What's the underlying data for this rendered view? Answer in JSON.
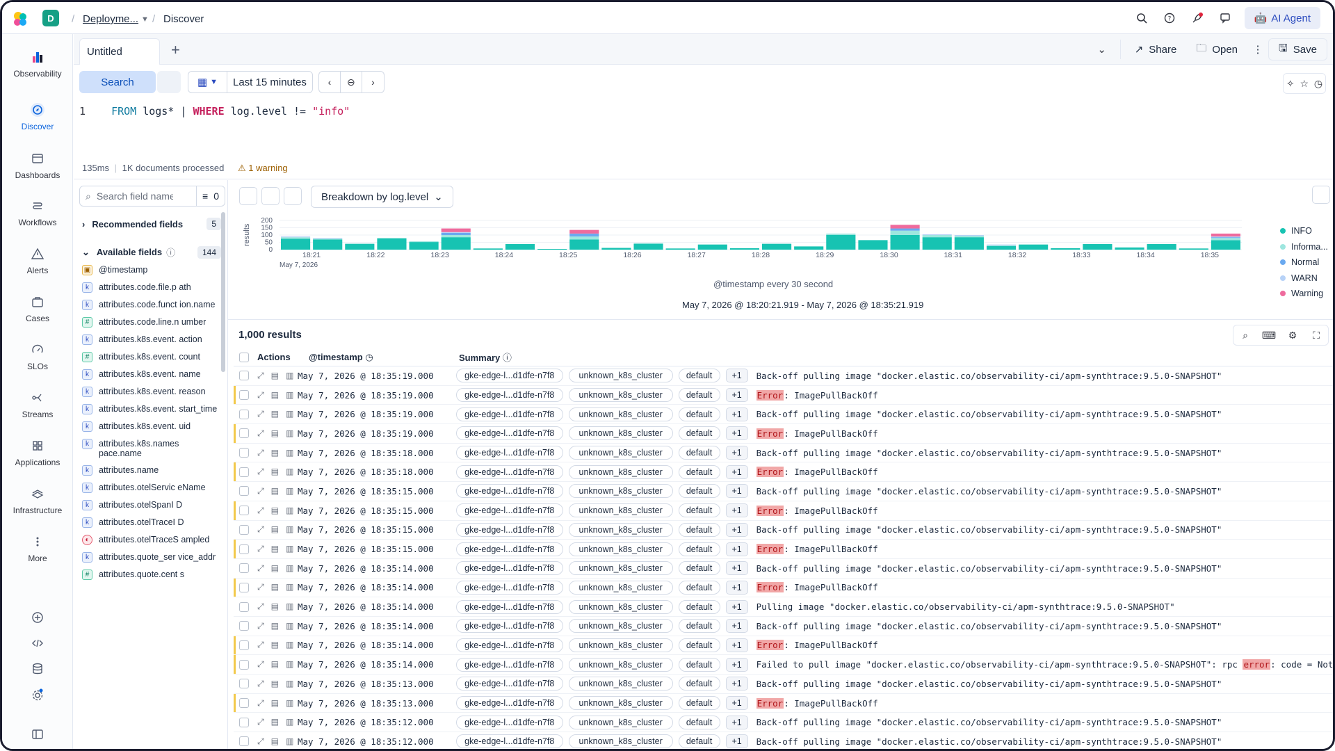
{
  "header": {
    "space_initial": "D",
    "breadcrumb_deployment": "Deployme...",
    "breadcrumb_page": "Discover",
    "ai_agent_label": "AI Agent"
  },
  "nav": {
    "items": [
      {
        "label": "Observability",
        "icon": "observability-icon"
      },
      {
        "label": "Discover",
        "icon": "discover-icon"
      },
      {
        "label": "Dashboards",
        "icon": "dashboards-icon"
      },
      {
        "label": "Workflows",
        "icon": "workflows-icon"
      },
      {
        "label": "Alerts",
        "icon": "alerts-icon"
      },
      {
        "label": "Cases",
        "icon": "cases-icon"
      },
      {
        "label": "SLOs",
        "icon": "slos-icon"
      },
      {
        "label": "Streams",
        "icon": "streams-icon"
      },
      {
        "label": "Applications",
        "icon": "applications-icon"
      },
      {
        "label": "Infrastructure",
        "icon": "infrastructure-icon"
      },
      {
        "label": "More",
        "icon": "more-icon"
      }
    ]
  },
  "tabs": {
    "active_tab": "Untitled",
    "share": "Share",
    "open": "Open",
    "save": "Save"
  },
  "query": {
    "search_label": "Search",
    "time_range": "Last 15 minutes",
    "line_number": "1",
    "from_kw": "FROM",
    "index": "logs*",
    "pipe": "|",
    "where_kw": "WHERE",
    "condition": "log.level !=",
    "value": "\"info\"",
    "duration": "135ms",
    "docs_processed": "1K documents processed",
    "warning": "1 warning"
  },
  "sidebar": {
    "search_placeholder": "Search field name",
    "filter_count": "0",
    "recommended_label": "Recommended fields",
    "recommended_count": "5",
    "available_label": "Available fields",
    "available_count": "144",
    "fields": [
      {
        "name": "@timestamp",
        "type": "date"
      },
      {
        "name": "attributes.code.file.p ath",
        "type": "keyword"
      },
      {
        "name": "attributes.code.funct ion.name",
        "type": "keyword"
      },
      {
        "name": "attributes.code.line.n umber",
        "type": "number"
      },
      {
        "name": "attributes.k8s.event. action",
        "type": "keyword"
      },
      {
        "name": "attributes.k8s.event. count",
        "type": "number"
      },
      {
        "name": "attributes.k8s.event. name",
        "type": "keyword"
      },
      {
        "name": "attributes.k8s.event. reason",
        "type": "keyword"
      },
      {
        "name": "attributes.k8s.event. start_time",
        "type": "keyword"
      },
      {
        "name": "attributes.k8s.event. uid",
        "type": "keyword"
      },
      {
        "name": "attributes.k8s.names pace.name",
        "type": "keyword"
      },
      {
        "name": "attributes.name",
        "type": "keyword"
      },
      {
        "name": "attributes.otelServic eName",
        "type": "keyword"
      },
      {
        "name": "attributes.otelSpanI D",
        "type": "keyword"
      },
      {
        "name": "attributes.otelTraceI D",
        "type": "keyword"
      },
      {
        "name": "attributes.otelTraceS ampled",
        "type": "boolean"
      },
      {
        "name": "attributes.quote_ser vice_addr",
        "type": "keyword"
      },
      {
        "name": "attributes.quote.cent s",
        "type": "number"
      }
    ]
  },
  "chart": {
    "breakdown_label": "Breakdown by log.level",
    "y_axis_label": "results",
    "x_caption": "@timestamp every 30 second",
    "date_label": "May 7, 2026",
    "range_label": "May 7, 2026 @ 18:20:21.919 - May 7, 2026 @ 18:35:21.919"
  },
  "chart_data": {
    "type": "bar",
    "stacked": true,
    "ylim": [
      0,
      200
    ],
    "yticks": [
      "200",
      "150",
      "100",
      "50",
      "0"
    ],
    "xtick_labels": [
      "18:21",
      "18:22",
      "18:23",
      "18:24",
      "18:25",
      "18:26",
      "18:27",
      "18:28",
      "18:29",
      "18:30",
      "18:31",
      "18:32",
      "18:33",
      "18:34",
      "18:35"
    ],
    "bars": [
      {
        "INFO": 75,
        "Informational": 10,
        "Normal": 0,
        "WARN": 5,
        "Warning": 0
      },
      {
        "INFO": 70,
        "Informational": 5,
        "Normal": 0,
        "WARN": 5,
        "Warning": 0
      },
      {
        "INFO": 40,
        "Informational": 0,
        "Normal": 0,
        "WARN": 0,
        "Warning": 0
      },
      {
        "INFO": 78,
        "Informational": 0,
        "Normal": 0,
        "WARN": 0,
        "Warning": 0
      },
      {
        "INFO": 52,
        "Informational": 5,
        "Normal": 0,
        "WARN": 0,
        "Warning": 0
      },
      {
        "INFO": 85,
        "Informational": 15,
        "Normal": 15,
        "WARN": 5,
        "Warning": 25
      },
      {
        "INFO": 8,
        "Informational": 0,
        "Normal": 0,
        "WARN": 0,
        "Warning": 0
      },
      {
        "INFO": 38,
        "Informational": 0,
        "Normal": 0,
        "WARN": 0,
        "Warning": 0
      },
      {
        "INFO": 5,
        "Informational": 0,
        "Normal": 0,
        "WARN": 0,
        "Warning": 0
      },
      {
        "INFO": 70,
        "Informational": 20,
        "Normal": 20,
        "WARN": 0,
        "Warning": 25
      },
      {
        "INFO": 12,
        "Informational": 0,
        "Normal": 0,
        "WARN": 0,
        "Warning": 0
      },
      {
        "INFO": 40,
        "Informational": 5,
        "Normal": 0,
        "WARN": 0,
        "Warning": 0
      },
      {
        "INFO": 8,
        "Informational": 0,
        "Normal": 0,
        "WARN": 0,
        "Warning": 0
      },
      {
        "INFO": 35,
        "Informational": 0,
        "Normal": 0,
        "WARN": 0,
        "Warning": 0
      },
      {
        "INFO": 10,
        "Informational": 0,
        "Normal": 0,
        "WARN": 0,
        "Warning": 0
      },
      {
        "INFO": 40,
        "Informational": 0,
        "Normal": 0,
        "WARN": 0,
        "Warning": 0
      },
      {
        "INFO": 22,
        "Informational": 0,
        "Normal": 0,
        "WARN": 0,
        "Warning": 0
      },
      {
        "INFO": 100,
        "Informational": 10,
        "Normal": 0,
        "WARN": 0,
        "Warning": 0
      },
      {
        "INFO": 65,
        "Informational": 0,
        "Normal": 0,
        "WARN": 0,
        "Warning": 0
      },
      {
        "INFO": 100,
        "Informational": 30,
        "Normal": 15,
        "WARN": 0,
        "Warning": 25
      },
      {
        "INFO": 85,
        "Informational": 15,
        "Normal": 0,
        "WARN": 5,
        "Warning": 0
      },
      {
        "INFO": 85,
        "Informational": 10,
        "Normal": 0,
        "WARN": 5,
        "Warning": 0
      },
      {
        "INFO": 25,
        "Informational": 5,
        "Normal": 0,
        "WARN": 5,
        "Warning": 0
      },
      {
        "INFO": 35,
        "Informational": 0,
        "Normal": 0,
        "WARN": 0,
        "Warning": 0
      },
      {
        "INFO": 10,
        "Informational": 0,
        "Normal": 0,
        "WARN": 0,
        "Warning": 0
      },
      {
        "INFO": 38,
        "Informational": 0,
        "Normal": 0,
        "WARN": 0,
        "Warning": 0
      },
      {
        "INFO": 15,
        "Informational": 0,
        "Normal": 0,
        "WARN": 0,
        "Warning": 0
      },
      {
        "INFO": 38,
        "Informational": 0,
        "Normal": 0,
        "WARN": 0,
        "Warning": 0
      },
      {
        "INFO": 8,
        "Informational": 0,
        "Normal": 0,
        "WARN": 0,
        "Warning": 0
      },
      {
        "INFO": 65,
        "Informational": 15,
        "Normal": 5,
        "WARN": 5,
        "Warning": 20
      }
    ],
    "series": [
      {
        "name": "INFO",
        "color": "#17c3b2"
      },
      {
        "name": "Informa...",
        "color": "#9ee6df"
      },
      {
        "name": "Normal",
        "color": "#6aa9f0"
      },
      {
        "name": "WARN",
        "color": "#b7d2f7"
      },
      {
        "name": "Warning",
        "color": "#ee6b9d"
      }
    ]
  },
  "table": {
    "results_label": "1,000 results",
    "col_actions": "Actions",
    "col_timestamp": "@timestamp",
    "col_summary": "Summary",
    "rows": [
      {
        "ts": "May 7, 2026 @ 18:35:19.000",
        "host": "gke-edge-l...d1dfe-n7f8",
        "cluster": "unknown_k8s_cluster",
        "ns": "default",
        "more": "+1",
        "pre": "Back-off pulling image \"docker.elastic.co/observability-ci/apm-synthtrace:9.5.0-SNAPSHOT\"",
        "hl": "",
        "post": "",
        "err": false
      },
      {
        "ts": "May 7, 2026 @ 18:35:19.000",
        "host": "gke-edge-l...d1dfe-n7f8",
        "cluster": "unknown_k8s_cluster",
        "ns": "default",
        "more": "+1",
        "pre": "",
        "hl": "Error",
        "post": ": ImagePullBackOff",
        "err": true
      },
      {
        "ts": "May 7, 2026 @ 18:35:19.000",
        "host": "gke-edge-l...d1dfe-n7f8",
        "cluster": "unknown_k8s_cluster",
        "ns": "default",
        "more": "+1",
        "pre": "Back-off pulling image \"docker.elastic.co/observability-ci/apm-synthtrace:9.5.0-SNAPSHOT\"",
        "hl": "",
        "post": "",
        "err": false
      },
      {
        "ts": "May 7, 2026 @ 18:35:19.000",
        "host": "gke-edge-l...d1dfe-n7f8",
        "cluster": "unknown_k8s_cluster",
        "ns": "default",
        "more": "+1",
        "pre": "",
        "hl": "Error",
        "post": ": ImagePullBackOff",
        "err": true
      },
      {
        "ts": "May 7, 2026 @ 18:35:18.000",
        "host": "gke-edge-l...d1dfe-n7f8",
        "cluster": "unknown_k8s_cluster",
        "ns": "default",
        "more": "+1",
        "pre": "Back-off pulling image \"docker.elastic.co/observability-ci/apm-synthtrace:9.5.0-SNAPSHOT\"",
        "hl": "",
        "post": "",
        "err": false
      },
      {
        "ts": "May 7, 2026 @ 18:35:18.000",
        "host": "gke-edge-l...d1dfe-n7f8",
        "cluster": "unknown_k8s_cluster",
        "ns": "default",
        "more": "+1",
        "pre": "",
        "hl": "Error",
        "post": ": ImagePullBackOff",
        "err": true
      },
      {
        "ts": "May 7, 2026 @ 18:35:15.000",
        "host": "gke-edge-l...d1dfe-n7f8",
        "cluster": "unknown_k8s_cluster",
        "ns": "default",
        "more": "+1",
        "pre": "Back-off pulling image \"docker.elastic.co/observability-ci/apm-synthtrace:9.5.0-SNAPSHOT\"",
        "hl": "",
        "post": "",
        "err": false
      },
      {
        "ts": "May 7, 2026 @ 18:35:15.000",
        "host": "gke-edge-l...d1dfe-n7f8",
        "cluster": "unknown_k8s_cluster",
        "ns": "default",
        "more": "+1",
        "pre": "",
        "hl": "Error",
        "post": ": ImagePullBackOff",
        "err": true
      },
      {
        "ts": "May 7, 2026 @ 18:35:15.000",
        "host": "gke-edge-l...d1dfe-n7f8",
        "cluster": "unknown_k8s_cluster",
        "ns": "default",
        "more": "+1",
        "pre": "Back-off pulling image \"docker.elastic.co/observability-ci/apm-synthtrace:9.5.0-SNAPSHOT\"",
        "hl": "",
        "post": "",
        "err": false
      },
      {
        "ts": "May 7, 2026 @ 18:35:15.000",
        "host": "gke-edge-l...d1dfe-n7f8",
        "cluster": "unknown_k8s_cluster",
        "ns": "default",
        "more": "+1",
        "pre": "",
        "hl": "Error",
        "post": ": ImagePullBackOff",
        "err": true
      },
      {
        "ts": "May 7, 2026 @ 18:35:14.000",
        "host": "gke-edge-l...d1dfe-n7f8",
        "cluster": "unknown_k8s_cluster",
        "ns": "default",
        "more": "+1",
        "pre": "Back-off pulling image \"docker.elastic.co/observability-ci/apm-synthtrace:9.5.0-SNAPSHOT\"",
        "hl": "",
        "post": "",
        "err": false
      },
      {
        "ts": "May 7, 2026 @ 18:35:14.000",
        "host": "gke-edge-l...d1dfe-n7f8",
        "cluster": "unknown_k8s_cluster",
        "ns": "default",
        "more": "+1",
        "pre": "",
        "hl": "Error",
        "post": ": ImagePullBackOff",
        "err": true
      },
      {
        "ts": "May 7, 2026 @ 18:35:14.000",
        "host": "gke-edge-l...d1dfe-n7f8",
        "cluster": "unknown_k8s_cluster",
        "ns": "default",
        "more": "+1",
        "pre": "Pulling image \"docker.elastic.co/observability-ci/apm-synthtrace:9.5.0-SNAPSHOT\"",
        "hl": "",
        "post": "",
        "err": false
      },
      {
        "ts": "May 7, 2026 @ 18:35:14.000",
        "host": "gke-edge-l...d1dfe-n7f8",
        "cluster": "unknown_k8s_cluster",
        "ns": "default",
        "more": "+1",
        "pre": "Back-off pulling image \"docker.elastic.co/observability-ci/apm-synthtrace:9.5.0-SNAPSHOT\"",
        "hl": "",
        "post": "",
        "err": false
      },
      {
        "ts": "May 7, 2026 @ 18:35:14.000",
        "host": "gke-edge-l...d1dfe-n7f8",
        "cluster": "unknown_k8s_cluster",
        "ns": "default",
        "more": "+1",
        "pre": "",
        "hl": "Error",
        "post": ": ImagePullBackOff",
        "err": true
      },
      {
        "ts": "May 7, 2026 @ 18:35:14.000",
        "host": "gke-edge-l...d1dfe-n7f8",
        "cluster": "unknown_k8s_cluster",
        "ns": "default",
        "more": "+1",
        "pre": "Failed to pull image \"docker.elastic.co/observability-ci/apm-synthtrace:9.5.0-SNAPSHOT\": rpc ",
        "hl": "error",
        "post": ": code = NotF",
        "err": true
      },
      {
        "ts": "May 7, 2026 @ 18:35:13.000",
        "host": "gke-edge-l...d1dfe-n7f8",
        "cluster": "unknown_k8s_cluster",
        "ns": "default",
        "more": "+1",
        "pre": "Back-off pulling image \"docker.elastic.co/observability-ci/apm-synthtrace:9.5.0-SNAPSHOT\"",
        "hl": "",
        "post": "",
        "err": false
      },
      {
        "ts": "May 7, 2026 @ 18:35:13.000",
        "host": "gke-edge-l...d1dfe-n7f8",
        "cluster": "unknown_k8s_cluster",
        "ns": "default",
        "more": "+1",
        "pre": "",
        "hl": "Error",
        "post": ": ImagePullBackOff",
        "err": true
      },
      {
        "ts": "May 7, 2026 @ 18:35:12.000",
        "host": "gke-edge-l...d1dfe-n7f8",
        "cluster": "unknown_k8s_cluster",
        "ns": "default",
        "more": "+1",
        "pre": "Back-off pulling image \"docker.elastic.co/observability-ci/apm-synthtrace:9.5.0-SNAPSHOT\"",
        "hl": "",
        "post": "",
        "err": false
      },
      {
        "ts": "May 7, 2026 @ 18:35:12.000",
        "host": "gke-edge-l...d1dfe-n7f8",
        "cluster": "unknown_k8s_cluster",
        "ns": "default",
        "more": "+1",
        "pre": "Back-off pulling image \"docker.elastic.co/observability-ci/apm-synthtrace:9.5.0-SNAPSHOT\"",
        "hl": "",
        "post": "",
        "err": false
      }
    ]
  }
}
